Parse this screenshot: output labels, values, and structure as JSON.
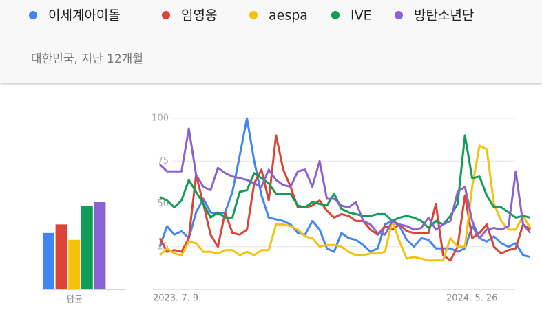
{
  "chart_data": [
    {
      "type": "line",
      "subtitle": "대한민국, 지난 12개월",
      "categories": [
        "2023. 7. 9.",
        null,
        null,
        null,
        null,
        null,
        null,
        null,
        null,
        null,
        null,
        null,
        null,
        null,
        null,
        null,
        null,
        null,
        null,
        null,
        null,
        null,
        null,
        null,
        null,
        null,
        null,
        null,
        null,
        null,
        null,
        null,
        null,
        null,
        null,
        null,
        null,
        null,
        null,
        null,
        null,
        null,
        null,
        null,
        null,
        null,
        "2024. 5. 26.",
        null,
        null,
        null,
        null,
        null
      ],
      "ylim": [
        0,
        100
      ],
      "yticks": [
        25,
        50,
        75,
        100
      ],
      "grid": true,
      "series": [
        {
          "name": "이세계아이돌",
          "color": "#4285f4",
          "values": [
            25,
            37,
            32,
            34,
            30,
            45,
            53,
            45,
            44,
            45,
            57,
            78,
            100,
            75,
            55,
            42,
            41,
            40,
            38,
            33,
            32,
            40,
            35,
            24,
            22,
            33,
            30,
            29,
            26,
            22,
            24,
            38,
            40,
            37,
            29,
            25,
            30,
            29,
            24,
            24,
            24,
            22,
            24,
            37,
            30,
            28,
            31,
            27,
            25,
            27,
            20,
            19
          ]
        },
        {
          "name": "임영웅",
          "color": "#db4437",
          "values": [
            30,
            22,
            23,
            22,
            30,
            67,
            50,
            32,
            25,
            45,
            33,
            32,
            35,
            62,
            70,
            52,
            90,
            70,
            60,
            48,
            48,
            49,
            52,
            46,
            42,
            44,
            43,
            40,
            40,
            35,
            32,
            37,
            35,
            38,
            34,
            33,
            33,
            33,
            50,
            20,
            17,
            25,
            55,
            30,
            33,
            38,
            25,
            21,
            23,
            24,
            38,
            35
          ]
        },
        {
          "name": "aespa",
          "color": "#f4c20d",
          "values": [
            20,
            24,
            21,
            20,
            28,
            27,
            22,
            22,
            21,
            23,
            23,
            20,
            22,
            20,
            23,
            23,
            38,
            38,
            37,
            35,
            31,
            30,
            25,
            26,
            26,
            25,
            22,
            20,
            20,
            21,
            21,
            22,
            40,
            28,
            18,
            19,
            18,
            17,
            17,
            17,
            30,
            25,
            25,
            60,
            84,
            82,
            50,
            40,
            35,
            35,
            43,
            36
          ]
        },
        {
          "name": "IVE",
          "color": "#0f9d58",
          "values": [
            54,
            52,
            48,
            52,
            64,
            57,
            50,
            42,
            45,
            42,
            42,
            57,
            58,
            68,
            65,
            62,
            56,
            56,
            56,
            49,
            48,
            51,
            50,
            49,
            56,
            47,
            45,
            44,
            43,
            43,
            44,
            44,
            40,
            42,
            43,
            42,
            40,
            36,
            40,
            38,
            43,
            50,
            90,
            65,
            66,
            55,
            48,
            48,
            45,
            42,
            43,
            42
          ]
        },
        {
          "name": "방탄소년단",
          "color": "#8a63d2",
          "values": [
            73,
            69,
            69,
            69,
            94,
            67,
            60,
            58,
            71,
            68,
            66,
            65,
            64,
            62,
            60,
            70,
            64,
            61,
            60,
            69,
            70,
            60,
            75,
            53,
            53,
            49,
            48,
            51,
            40,
            38,
            33,
            32,
            40,
            38,
            37,
            35,
            36,
            42,
            35,
            38,
            40,
            57,
            60,
            40,
            30,
            35,
            36,
            35,
            37,
            69,
            38,
            33
          ]
        }
      ]
    },
    {
      "type": "bar",
      "categories": [
        "평균"
      ],
      "ylim": [
        0,
        100
      ],
      "series": [
        {
          "color": "#4285f4",
          "values": [
            33
          ]
        },
        {
          "color": "#db4437",
          "values": [
            38
          ]
        },
        {
          "color": "#f4c20d",
          "values": [
            29
          ]
        },
        {
          "color": "#0f9d58",
          "values": [
            49
          ]
        },
        {
          "color": "#8a63d2",
          "values": [
            51
          ]
        }
      ]
    }
  ]
}
